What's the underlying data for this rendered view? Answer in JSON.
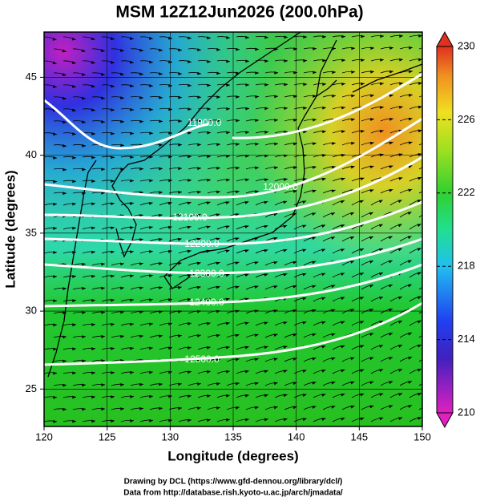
{
  "title": "MSM 12Z12Jun2026 (200.0hPa)",
  "map": {
    "x_label": "Longitude (degrees)",
    "y_label": "Latitude  (degrees)",
    "xlim": [
      120,
      150
    ],
    "ylim": [
      22.6,
      47.9
    ],
    "xticks": [
      120,
      125,
      130,
      135,
      140,
      145,
      150
    ],
    "yticks": [
      25,
      30,
      35,
      40,
      45
    ],
    "contours": [
      {
        "value": 11900,
        "label": "11900.0"
      },
      {
        "value": 12000,
        "label": "12000.0"
      },
      {
        "value": 12100,
        "label": "12100.0"
      },
      {
        "value": 12200,
        "label": "12200.0"
      },
      {
        "value": 12300,
        "label": "12300.0"
      },
      {
        "value": 12400,
        "label": "12400.0"
      },
      {
        "value": 12500,
        "label": "12500.0"
      }
    ]
  },
  "colorbar": {
    "lim": [
      210,
      230
    ],
    "ticks": [
      210,
      214,
      218,
      222,
      226,
      230
    ]
  },
  "footer": [
    "Drawing by DCL (https://www.gfd-dennou.org/library/dcl/)",
    "Data from http://database.rish.kyoto-u.ac.jp/arch/jmadata/"
  ]
}
